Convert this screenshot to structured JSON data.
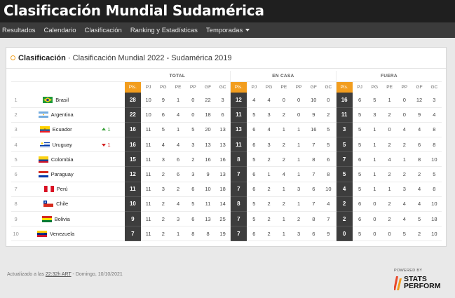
{
  "app": {
    "title": "Clasificación Mundial Sudamérica"
  },
  "nav": [
    {
      "label": "Resultados",
      "dropdown": false
    },
    {
      "label": "Calendario",
      "dropdown": false
    },
    {
      "label": "Clasificación",
      "dropdown": false
    },
    {
      "label": "Ranking y Estadísticas",
      "dropdown": false
    },
    {
      "label": "Temporadas",
      "dropdown": true
    }
  ],
  "panel": {
    "title_bold": "Clasificación",
    "title_rest": " · Clasificación Mundial 2022 - Sudamérica 2019"
  },
  "table": {
    "groups": {
      "total": "TOTAL",
      "home": "EN CASA",
      "away": "FUERA"
    },
    "columns": [
      "Pts.",
      "PJ",
      "PG",
      "PE",
      "PP",
      "GF",
      "GC"
    ],
    "rows": [
      {
        "pos": "1",
        "team": "Brasil",
        "flag": "brazil-flag-icon",
        "move": "",
        "dir": "",
        "total": [
          "28",
          "10",
          "9",
          "1",
          "0",
          "22",
          "3"
        ],
        "home": [
          "12",
          "4",
          "4",
          "0",
          "0",
          "10",
          "0"
        ],
        "away": [
          "16",
          "6",
          "5",
          "1",
          "0",
          "12",
          "3"
        ]
      },
      {
        "pos": "2",
        "team": "Argentina",
        "flag": "argentina-flag-icon",
        "move": "",
        "dir": "",
        "total": [
          "22",
          "10",
          "6",
          "4",
          "0",
          "18",
          "6"
        ],
        "home": [
          "11",
          "5",
          "3",
          "2",
          "0",
          "9",
          "2"
        ],
        "away": [
          "11",
          "5",
          "3",
          "2",
          "0",
          "9",
          "4"
        ]
      },
      {
        "pos": "3",
        "team": "Ecuador",
        "flag": "ecuador-flag-icon",
        "move": "1",
        "dir": "up",
        "total": [
          "16",
          "11",
          "5",
          "1",
          "5",
          "20",
          "13"
        ],
        "home": [
          "13",
          "6",
          "4",
          "1",
          "1",
          "16",
          "5"
        ],
        "away": [
          "3",
          "5",
          "1",
          "0",
          "4",
          "4",
          "8"
        ]
      },
      {
        "pos": "4",
        "team": "Uruguay",
        "flag": "uruguay-flag-icon",
        "move": "1",
        "dir": "down",
        "total": [
          "16",
          "11",
          "4",
          "4",
          "3",
          "13",
          "13"
        ],
        "home": [
          "11",
          "6",
          "3",
          "2",
          "1",
          "7",
          "5"
        ],
        "away": [
          "5",
          "5",
          "1",
          "2",
          "2",
          "6",
          "8"
        ]
      },
      {
        "pos": "5",
        "team": "Colombia",
        "flag": "colombia-flag-icon",
        "move": "",
        "dir": "",
        "total": [
          "15",
          "11",
          "3",
          "6",
          "2",
          "16",
          "16"
        ],
        "home": [
          "8",
          "5",
          "2",
          "2",
          "1",
          "8",
          "6"
        ],
        "away": [
          "7",
          "6",
          "1",
          "4",
          "1",
          "8",
          "10"
        ]
      },
      {
        "pos": "6",
        "team": "Paraguay",
        "flag": "paraguay-flag-icon",
        "move": "",
        "dir": "",
        "total": [
          "12",
          "11",
          "2",
          "6",
          "3",
          "9",
          "13"
        ],
        "home": [
          "7",
          "6",
          "1",
          "4",
          "1",
          "7",
          "8"
        ],
        "away": [
          "5",
          "5",
          "1",
          "2",
          "2",
          "2",
          "5"
        ]
      },
      {
        "pos": "7",
        "team": "Perú",
        "flag": "peru-flag-icon",
        "move": "",
        "dir": "",
        "total": [
          "11",
          "11",
          "3",
          "2",
          "6",
          "10",
          "18"
        ],
        "home": [
          "7",
          "6",
          "2",
          "1",
          "3",
          "6",
          "10"
        ],
        "away": [
          "4",
          "5",
          "1",
          "1",
          "3",
          "4",
          "8"
        ]
      },
      {
        "pos": "8",
        "team": "Chile",
        "flag": "chile-flag-icon",
        "move": "",
        "dir": "",
        "total": [
          "10",
          "11",
          "2",
          "4",
          "5",
          "11",
          "14"
        ],
        "home": [
          "8",
          "5",
          "2",
          "2",
          "1",
          "7",
          "4"
        ],
        "away": [
          "2",
          "6",
          "0",
          "2",
          "4",
          "4",
          "10"
        ]
      },
      {
        "pos": "9",
        "team": "Bolivia",
        "flag": "bolivia-flag-icon",
        "move": "",
        "dir": "",
        "total": [
          "9",
          "11",
          "2",
          "3",
          "6",
          "13",
          "25"
        ],
        "home": [
          "7",
          "5",
          "2",
          "1",
          "2",
          "8",
          "7"
        ],
        "away": [
          "2",
          "6",
          "0",
          "2",
          "4",
          "5",
          "18"
        ]
      },
      {
        "pos": "10",
        "team": "Venezuela",
        "flag": "venezuela-flag-icon",
        "move": "",
        "dir": "",
        "total": [
          "7",
          "11",
          "2",
          "1",
          "8",
          "8",
          "19"
        ],
        "home": [
          "7",
          "6",
          "2",
          "1",
          "3",
          "6",
          "9"
        ],
        "away": [
          "0",
          "5",
          "0",
          "0",
          "5",
          "2",
          "10"
        ]
      }
    ]
  },
  "footer": {
    "prefix": "Actualizado a las ",
    "time": "22:32h ART",
    "suffix": " - Domingo, 10/10/2021",
    "powered_by": "POWERED BY",
    "brand_line1": "STATS",
    "brand_line2": "PERFORM"
  },
  "colors": {
    "accent": "#f29d1e",
    "pts_cell": "#3d3d3d",
    "up": "#3aa13a",
    "down": "#d22020"
  }
}
